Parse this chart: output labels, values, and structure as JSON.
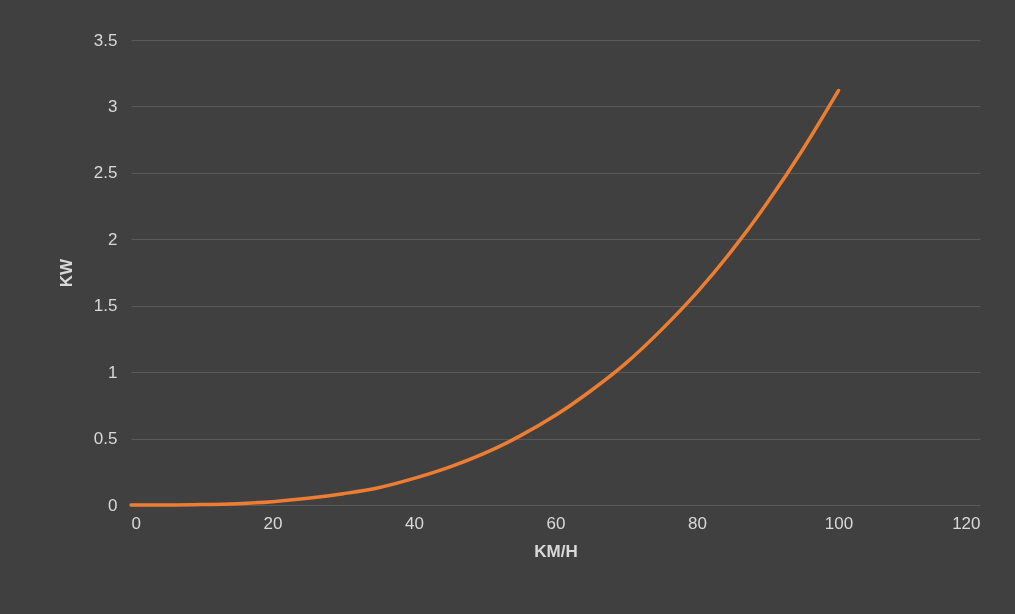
{
  "chart_data": {
    "type": "line",
    "xlabel": "KM/H",
    "ylabel": "KW",
    "x": [
      0,
      5,
      10,
      15,
      20,
      25,
      30,
      35,
      40,
      45,
      50,
      55,
      60,
      65,
      70,
      75,
      80,
      85,
      90,
      95,
      100
    ],
    "series": [
      {
        "color": "#ed7d31",
        "values": [
          0,
          0,
          0.003,
          0.01,
          0.025,
          0.05,
          0.085,
          0.13,
          0.2,
          0.285,
          0.39,
          0.52,
          0.675,
          0.86,
          1.07,
          1.32,
          1.6,
          1.92,
          2.28,
          2.68,
          3.12
        ]
      }
    ],
    "xlim": [
      0,
      120
    ],
    "xticks": [
      0,
      20,
      40,
      60,
      80,
      100,
      120
    ],
    "ylim": [
      0,
      3.5
    ],
    "yticks": [
      0,
      0.5,
      1,
      1.5,
      2,
      2.5,
      3,
      3.5
    ],
    "grid": "y"
  }
}
